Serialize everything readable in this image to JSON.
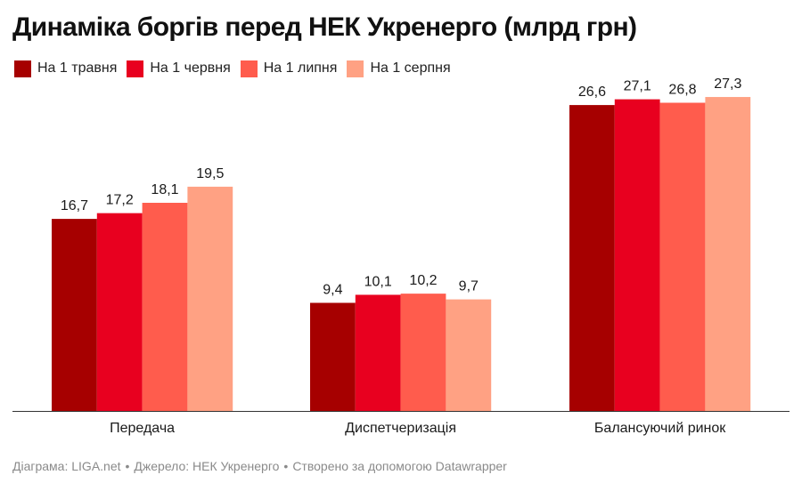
{
  "title": "Динаміка боргів перед НЕК Укренерго (млрд грн)",
  "chart_data": {
    "type": "bar",
    "categories": [
      "Передача",
      "Диспетчеризація",
      "Балансуючий ринок"
    ],
    "series": [
      {
        "name": "На 1 травня",
        "color": "#a60000",
        "values": [
          16.7,
          9.4,
          26.6
        ],
        "labels": [
          "16,7",
          "9,4",
          "26,6"
        ]
      },
      {
        "name": "На 1 червня",
        "color": "#e8001f",
        "values": [
          17.2,
          10.1,
          27.1
        ],
        "labels": [
          "17,2",
          "10,1",
          "27,1"
        ]
      },
      {
        "name": "На 1 липня",
        "color": "#ff5c4d",
        "values": [
          18.1,
          10.2,
          26.8
        ],
        "labels": [
          "18,1",
          "10,2",
          "26,8"
        ]
      },
      {
        "name": "На 1 серпня",
        "color": "#ffa183",
        "values": [
          19.5,
          9.7,
          27.3
        ],
        "labels": [
          "19,5",
          "9,7",
          "27,3"
        ]
      }
    ],
    "ylim": [
      0,
      28
    ],
    "grid": false,
    "legend_position": "top-left"
  },
  "footer": {
    "chart": "Діаграма: LIGA.net",
    "source": "Джерело: НЕК Укренерго",
    "tool": "Створено за допомогою Datawrapper",
    "separator": "•"
  }
}
